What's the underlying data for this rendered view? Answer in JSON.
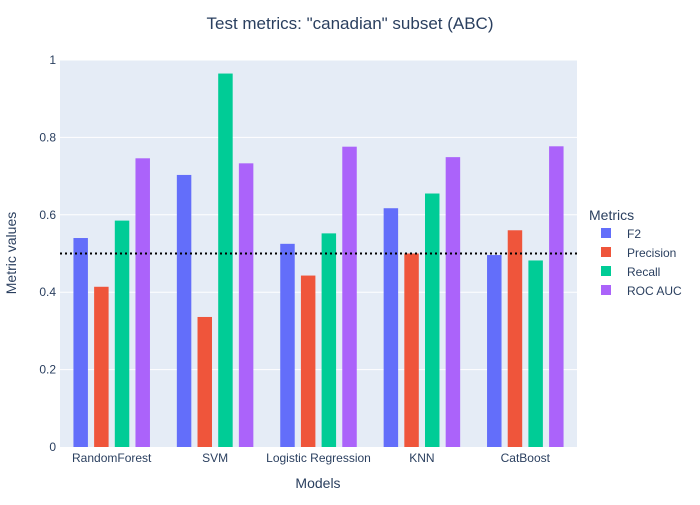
{
  "chart_data": {
    "type": "bar",
    "title": "Test metrics: \"canadian\" subset (ABC)",
    "xlabel": "Models",
    "ylabel": "Metric values",
    "ylim": [
      0,
      1
    ],
    "yticks": [
      "0",
      "0.2",
      "0.4",
      "0.6",
      "0.8",
      "1"
    ],
    "categories": [
      "RandomForest",
      "SVM",
      "Logistic Regression",
      "KNN",
      "CatBoost"
    ],
    "legend_title": "Metrics",
    "legend_position": "right",
    "grid": true,
    "reference_line": {
      "value": 0.5,
      "style": "dotted"
    },
    "colors": {
      "plot_background": "#e5ecf6",
      "grid": "#ffffff",
      "text": "#2a3f5f"
    },
    "series": [
      {
        "name": "F2",
        "color": "#636efa",
        "values": [
          0.54,
          0.703,
          0.525,
          0.617,
          0.496
        ]
      },
      {
        "name": "Precision",
        "color": "#ef553b",
        "values": [
          0.414,
          0.336,
          0.443,
          0.5,
          0.56
        ]
      },
      {
        "name": "Recall",
        "color": "#00cc96",
        "values": [
          0.585,
          0.965,
          0.552,
          0.655,
          0.482
        ]
      },
      {
        "name": "ROC AUC",
        "color": "#ab63fa",
        "values": [
          0.746,
          0.733,
          0.776,
          0.749,
          0.777
        ]
      }
    ]
  }
}
